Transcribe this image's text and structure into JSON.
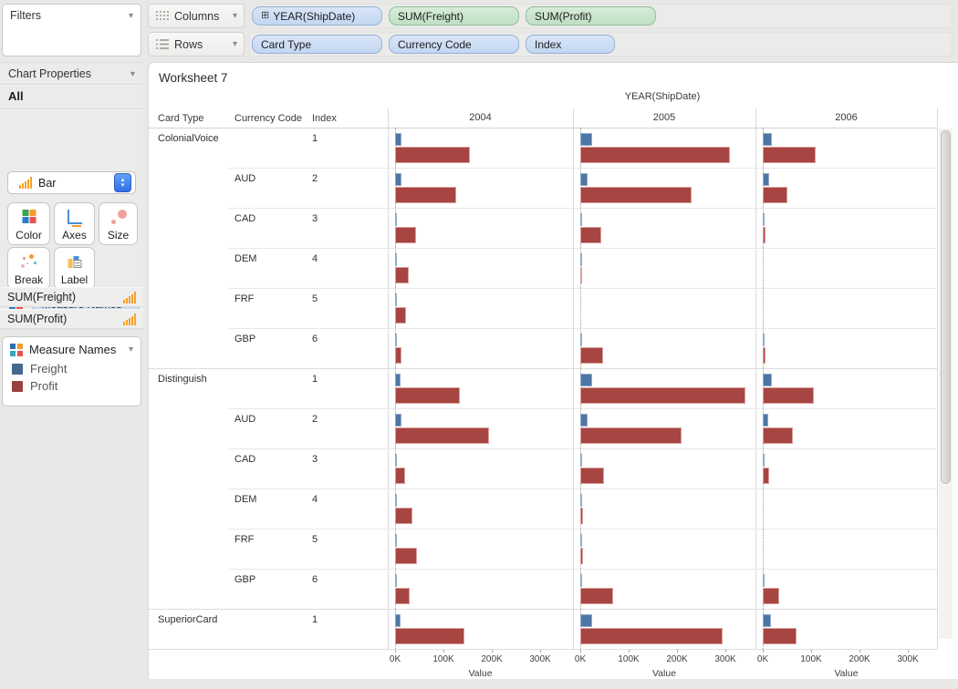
{
  "shelves": {
    "columns": {
      "label": "Columns",
      "pills": [
        {
          "label": "YEAR(ShipDate)",
          "type": "dimension",
          "expandable": true
        },
        {
          "label": "SUM(Freight)",
          "type": "measure"
        },
        {
          "label": "SUM(Profit)",
          "type": "measure"
        }
      ]
    },
    "rows": {
      "label": "Rows",
      "pills": [
        {
          "label": "Card Type",
          "type": "dimension"
        },
        {
          "label": "Currency Code",
          "type": "dimension"
        },
        {
          "label": "Index",
          "type": "dimension"
        }
      ]
    }
  },
  "sidebar": {
    "filters": {
      "title": "Filters"
    },
    "chart_properties": {
      "title": "Chart Properties",
      "section": "All",
      "chart_type": "Bar",
      "buttons": [
        "Color",
        "Axes",
        "Size",
        "Break",
        "Label"
      ],
      "measure_pill": "Measure Names",
      "fields": [
        "SUM(Freight)",
        "SUM(Profit)"
      ]
    },
    "legend": {
      "title": "Measure Names",
      "items": [
        {
          "label": "Freight",
          "color": "#44688f"
        },
        {
          "label": "Profit",
          "color": "#98403c"
        }
      ]
    }
  },
  "worksheet": {
    "title": "Worksheet 7",
    "row_headers": [
      "Card Type",
      "Currency Code",
      "Index"
    ],
    "col_header": "YEAR(ShipDate)"
  },
  "colors": {
    "freight_bar": "#4d76a4",
    "profit_bar": "#a64541",
    "dimension_pill": "#c3d7f2",
    "measure_pill": "#bfe0c4"
  },
  "chart_data": {
    "type": "bar",
    "orientation": "horizontal",
    "unit": "K (thousands)",
    "col_groups": [
      "2004",
      "2005",
      "2006"
    ],
    "series": [
      "Freight",
      "Profit"
    ],
    "x_axis": {
      "ticks": [
        "0K",
        "100K",
        "200K",
        "300K"
      ],
      "tick_values_k": [
        0,
        100,
        200,
        300
      ],
      "label": "Value",
      "max_k": 380
    },
    "legend_position": "left",
    "rows": [
      {
        "card_type": "ColonialVoice",
        "currency_code": "",
        "index": "1",
        "values": {
          "2004": {
            "Freight": 13,
            "Profit": 155
          },
          "2005": {
            "Freight": 25,
            "Profit": 310
          },
          "2006": {
            "Freight": 19,
            "Profit": 109
          }
        }
      },
      {
        "card_type": "ColonialVoice",
        "currency_code": "AUD",
        "index": "2",
        "values": {
          "2004": {
            "Freight": 13,
            "Profit": 126
          },
          "2005": {
            "Freight": 16,
            "Profit": 230
          },
          "2006": {
            "Freight": 13,
            "Profit": 51
          }
        }
      },
      {
        "card_type": "ColonialVoice",
        "currency_code": "CAD",
        "index": "3",
        "values": {
          "2004": {
            "Freight": 4,
            "Profit": 43
          },
          "2005": {
            "Freight": 4,
            "Profit": 43
          },
          "2006": {
            "Freight": 2,
            "Profit": 6
          }
        }
      },
      {
        "card_type": "ColonialVoice",
        "currency_code": "DEM",
        "index": "4",
        "values": {
          "2004": {
            "Freight": 2,
            "Profit": 28
          },
          "2005": {
            "Freight": 1,
            "Profit": 2
          },
          "2006": {
            "Freight": 0,
            "Profit": 0
          }
        }
      },
      {
        "card_type": "ColonialVoice",
        "currency_code": "FRF",
        "index": "5",
        "values": {
          "2004": {
            "Freight": 2,
            "Profit": 23
          },
          "2005": {
            "Freight": 0,
            "Profit": 0
          },
          "2006": {
            "Freight": 0,
            "Profit": 0
          }
        }
      },
      {
        "card_type": "ColonialVoice",
        "currency_code": "GBP",
        "index": "6",
        "values": {
          "2004": {
            "Freight": 3,
            "Profit": 14
          },
          "2005": {
            "Freight": 4,
            "Profit": 47
          },
          "2006": {
            "Freight": 2,
            "Profit": 6
          }
        }
      },
      {
        "card_type": "Distinguish",
        "currency_code": "",
        "index": "1",
        "values": {
          "2004": {
            "Freight": 12,
            "Profit": 134
          },
          "2005": {
            "Freight": 25,
            "Profit": 342
          },
          "2006": {
            "Freight": 19,
            "Profit": 106
          }
        }
      },
      {
        "card_type": "Distinguish",
        "currency_code": "AUD",
        "index": "2",
        "values": {
          "2004": {
            "Freight": 13,
            "Profit": 194
          },
          "2005": {
            "Freight": 15,
            "Profit": 210
          },
          "2006": {
            "Freight": 12,
            "Profit": 62
          }
        }
      },
      {
        "card_type": "Distinguish",
        "currency_code": "CAD",
        "index": "3",
        "values": {
          "2004": {
            "Freight": 3,
            "Profit": 21
          },
          "2005": {
            "Freight": 4,
            "Profit": 49
          },
          "2006": {
            "Freight": 2,
            "Profit": 13
          }
        }
      },
      {
        "card_type": "Distinguish",
        "currency_code": "DEM",
        "index": "4",
        "values": {
          "2004": {
            "Freight": 2,
            "Profit": 36
          },
          "2005": {
            "Freight": 1,
            "Profit": 5
          },
          "2006": {
            "Freight": 0,
            "Profit": 0
          }
        }
      },
      {
        "card_type": "Distinguish",
        "currency_code": "FRF",
        "index": "5",
        "values": {
          "2004": {
            "Freight": 3,
            "Profit": 45
          },
          "2005": {
            "Freight": 1,
            "Profit": 5
          },
          "2006": {
            "Freight": 0,
            "Profit": 0
          }
        }
      },
      {
        "card_type": "Distinguish",
        "currency_code": "GBP",
        "index": "6",
        "values": {
          "2004": {
            "Freight": 3,
            "Profit": 30
          },
          "2005": {
            "Freight": 4,
            "Profit": 68
          },
          "2006": {
            "Freight": 2,
            "Profit": 34
          }
        }
      },
      {
        "card_type": "SuperiorCard",
        "currency_code": "",
        "index": "1",
        "values": {
          "2004": {
            "Freight": 12,
            "Profit": 143
          },
          "2005": {
            "Freight": 25,
            "Profit": 294
          },
          "2006": {
            "Freight": 17,
            "Profit": 70
          }
        }
      }
    ]
  }
}
